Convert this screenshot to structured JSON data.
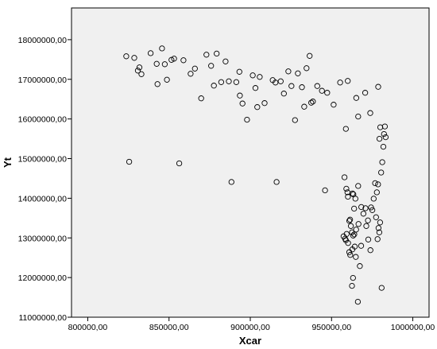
{
  "chart_data": {
    "type": "scatter",
    "title": "",
    "xlabel": "Xcar",
    "ylabel": "Yt",
    "xlim": [
      790000,
      1010000
    ],
    "ylim": [
      11000000,
      18800000
    ],
    "xticks": [
      800000,
      850000,
      900000,
      950000,
      1000000
    ],
    "xtick_labels": [
      "800000,00",
      "850000,00",
      "900000,00",
      "950000,00",
      "1000000,00"
    ],
    "yticks": [
      11000000,
      12000000,
      13000000,
      14000000,
      15000000,
      16000000,
      17000000,
      18000000
    ],
    "ytick_labels": [
      "11000000,00",
      "12000000,00",
      "13000000,00",
      "14000000,00",
      "15000000,00",
      "16000000,00",
      "17000000,00",
      "18000000,00"
    ],
    "grid": false,
    "legend": "none",
    "colors": {
      "plot_bg": "#f0f0f0",
      "axis": "#000000",
      "marker_stroke": "#000000"
    },
    "points": [
      [
        823700,
        17580000
      ],
      [
        828600,
        17540000
      ],
      [
        830800,
        17220000
      ],
      [
        831800,
        17300000
      ],
      [
        833000,
        17130000
      ],
      [
        838700,
        17660000
      ],
      [
        842400,
        17390000
      ],
      [
        845700,
        17780000
      ],
      [
        847400,
        17380000
      ],
      [
        851500,
        17490000
      ],
      [
        853100,
        17520000
      ],
      [
        858900,
        17480000
      ],
      [
        863300,
        17140000
      ],
      [
        865900,
        17270000
      ],
      [
        842900,
        16880000
      ],
      [
        848700,
        16990000
      ],
      [
        873000,
        17620000
      ],
      [
        875900,
        17340000
      ],
      [
        877600,
        16840000
      ],
      [
        879300,
        17650000
      ],
      [
        882100,
        16930000
      ],
      [
        884800,
        17450000
      ],
      [
        886800,
        16950000
      ],
      [
        891400,
        16930000
      ],
      [
        893300,
        17190000
      ],
      [
        893600,
        16590000
      ],
      [
        895200,
        16390000
      ],
      [
        869800,
        16520000
      ],
      [
        898000,
        15980000
      ],
      [
        901500,
        17100000
      ],
      [
        903200,
        16780000
      ],
      [
        904300,
        16300000
      ],
      [
        905800,
        17060000
      ],
      [
        908800,
        16400000
      ],
      [
        913800,
        16980000
      ],
      [
        915500,
        16920000
      ],
      [
        918700,
        16950000
      ],
      [
        920700,
        16640000
      ],
      [
        923400,
        17200000
      ],
      [
        925300,
        16830000
      ],
      [
        927500,
        15970000
      ],
      [
        929300,
        17150000
      ],
      [
        931800,
        16800000
      ],
      [
        933200,
        16310000
      ],
      [
        934600,
        17280000
      ],
      [
        936500,
        17590000
      ],
      [
        937500,
        16410000
      ],
      [
        938500,
        16440000
      ],
      [
        941200,
        16830000
      ],
      [
        944100,
        16710000
      ],
      [
        947300,
        16660000
      ],
      [
        951300,
        16360000
      ],
      [
        955300,
        16920000
      ],
      [
        958800,
        15750000
      ],
      [
        960000,
        16960000
      ],
      [
        965200,
        16530000
      ],
      [
        970700,
        16660000
      ],
      [
        973800,
        16150000
      ],
      [
        978700,
        16810000
      ],
      [
        966400,
        16060000
      ],
      [
        825500,
        14920000
      ],
      [
        856300,
        14880000
      ],
      [
        888400,
        14410000
      ],
      [
        916200,
        14410000
      ],
      [
        946000,
        14200000
      ],
      [
        958000,
        14530000
      ],
      [
        959100,
        14240000
      ],
      [
        959800,
        14150000
      ],
      [
        960100,
        14040000
      ],
      [
        962900,
        14120000
      ],
      [
        963400,
        14100000
      ],
      [
        964700,
        13990000
      ],
      [
        966400,
        14310000
      ],
      [
        968300,
        13780000
      ],
      [
        969600,
        13610000
      ],
      [
        970900,
        13750000
      ],
      [
        971400,
        13300000
      ],
      [
        972400,
        13440000
      ],
      [
        974300,
        13770000
      ],
      [
        975100,
        13700000
      ],
      [
        975900,
        13990000
      ],
      [
        976800,
        14380000
      ],
      [
        977900,
        14150000
      ],
      [
        978600,
        14350000
      ],
      [
        977400,
        13520000
      ],
      [
        979400,
        13140000
      ],
      [
        979900,
        13390000
      ],
      [
        980500,
        14650000
      ],
      [
        981200,
        14910000
      ],
      [
        981900,
        15300000
      ],
      [
        982300,
        15620000
      ],
      [
        982800,
        15810000
      ],
      [
        983300,
        15540000
      ],
      [
        980000,
        15790000
      ],
      [
        979500,
        15500000
      ],
      [
        960900,
        13430000
      ],
      [
        961400,
        13460000
      ],
      [
        961900,
        13300000
      ],
      [
        962600,
        13140000
      ],
      [
        963300,
        13060000
      ],
      [
        964000,
        13090000
      ],
      [
        965100,
        13210000
      ],
      [
        966600,
        13350000
      ],
      [
        957400,
        13040000
      ],
      [
        958300,
        12980000
      ],
      [
        958800,
        12940000
      ],
      [
        959300,
        13100000
      ],
      [
        960200,
        12870000
      ],
      [
        960900,
        12640000
      ],
      [
        962800,
        12710000
      ],
      [
        964300,
        12780000
      ],
      [
        964900,
        12520000
      ],
      [
        967400,
        12290000
      ],
      [
        968200,
        12800000
      ],
      [
        972600,
        12960000
      ],
      [
        973900,
        12690000
      ],
      [
        978300,
        12970000
      ],
      [
        978900,
        13250000
      ],
      [
        963200,
        11990000
      ],
      [
        962600,
        11790000
      ],
      [
        966200,
        11390000
      ],
      [
        980800,
        11740000
      ],
      [
        961500,
        12570000
      ],
      [
        963900,
        13740000
      ]
    ]
  }
}
